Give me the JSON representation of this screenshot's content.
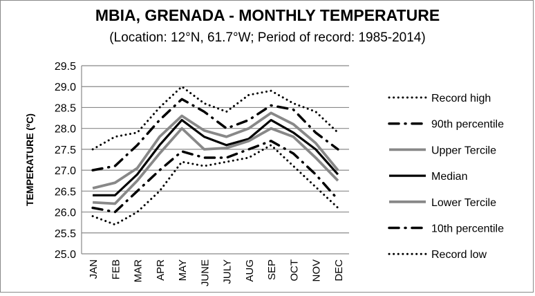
{
  "chart_data": {
    "type": "line",
    "title": "MBIA, GRENADA - MONTHLY TEMPERATURE",
    "subtitle": "(Location: 12°N, 61.7°W; Period of record: 1985-2014)",
    "xlabel": "",
    "ylabel": "TEMPERATURE (ºC)",
    "ylim": [
      25.0,
      29.5
    ],
    "yticks": [
      "25.0",
      "25.5",
      "26.0",
      "26.5",
      "27.0",
      "27.5",
      "28.0",
      "28.5",
      "29.0",
      "29.5"
    ],
    "ytick_values": [
      25.0,
      25.5,
      26.0,
      26.5,
      27.0,
      27.5,
      28.0,
      28.5,
      29.0,
      29.5
    ],
    "grid": true,
    "legend_position": "right",
    "categories": [
      "JAN",
      "FEB",
      "MAR",
      "APR",
      "MAY",
      "JUNE",
      "JULY",
      "AUG",
      "SEP",
      "OCT",
      "NOV",
      "DEC"
    ],
    "series": [
      {
        "name": "Record high",
        "style": "dotted",
        "color": "#000000",
        "values": [
          27.5,
          27.8,
          27.9,
          28.5,
          29.0,
          28.6,
          28.4,
          28.8,
          28.9,
          28.6,
          28.4,
          27.9
        ]
      },
      {
        "name": "90th percentile",
        "style": "dashdot",
        "color": "#000000",
        "values": [
          27.0,
          27.1,
          27.6,
          28.2,
          28.7,
          28.4,
          28.0,
          28.2,
          28.55,
          28.45,
          27.9,
          27.5
        ]
      },
      {
        "name": "Upper Tercile",
        "style": "solid",
        "color": "#888888",
        "values": [
          26.57,
          26.7,
          27.05,
          27.8,
          28.3,
          27.95,
          27.8,
          28.0,
          28.37,
          28.1,
          27.65,
          27.0
        ]
      },
      {
        "name": "Median",
        "style": "solid",
        "color": "#000000",
        "values": [
          26.4,
          26.4,
          26.9,
          27.6,
          28.2,
          27.8,
          27.6,
          27.75,
          28.2,
          27.9,
          27.5,
          26.9
        ]
      },
      {
        "name": "Lower Tercile",
        "style": "solid",
        "color": "#888888",
        "values": [
          26.23,
          26.2,
          26.75,
          27.4,
          28.0,
          27.5,
          27.53,
          27.7,
          28.0,
          27.8,
          27.3,
          26.75
        ]
      },
      {
        "name": "10th percentile",
        "style": "dashdot",
        "color": "#000000",
        "values": [
          26.1,
          26.0,
          26.5,
          27.0,
          27.45,
          27.3,
          27.3,
          27.5,
          27.7,
          27.4,
          26.9,
          26.3
        ]
      },
      {
        "name": "Record low",
        "style": "dotted",
        "color": "#000000",
        "values": [
          25.9,
          25.7,
          26.0,
          26.5,
          27.2,
          27.1,
          27.2,
          27.3,
          27.6,
          27.1,
          26.6,
          26.1
        ]
      }
    ]
  }
}
